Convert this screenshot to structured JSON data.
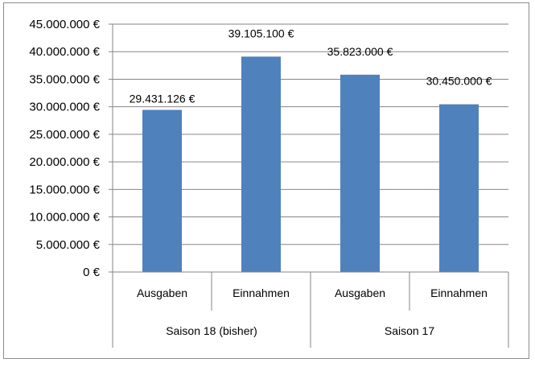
{
  "chart_data": {
    "type": "bar",
    "title": "",
    "xlabel": "",
    "ylabel": "",
    "ylim": [
      0,
      45000000
    ],
    "yticks": [
      0,
      5000000,
      10000000,
      15000000,
      20000000,
      25000000,
      30000000,
      35000000,
      40000000,
      45000000
    ],
    "ytick_labels": [
      "0 €",
      "5.000.000 €",
      "10.000.000 €",
      "15.000.000 €",
      "20.000.000 €",
      "25.000.000 €",
      "30.000.000 €",
      "35.000.000 €",
      "40.000.000 €",
      "45.000.000 €"
    ],
    "grid": true,
    "legend": "none",
    "bar_color": "#4f81bd",
    "groups": [
      {
        "label": "Saison 18 (bisher)",
        "categories": [
          "Ausgaben",
          "Einnahmen"
        ]
      },
      {
        "label": "Saison 17",
        "categories": [
          "Ausgaben",
          "Einnahmen"
        ]
      }
    ],
    "categories": [
      "Ausgaben",
      "Einnahmen",
      "Ausgaben",
      "Einnahmen"
    ],
    "values": [
      29431126,
      39105100,
      35823000,
      30450000
    ],
    "data_labels": [
      "29.431.126 €",
      "39.105.100 €",
      "35.823.000 €",
      "30.450.000 €"
    ]
  }
}
